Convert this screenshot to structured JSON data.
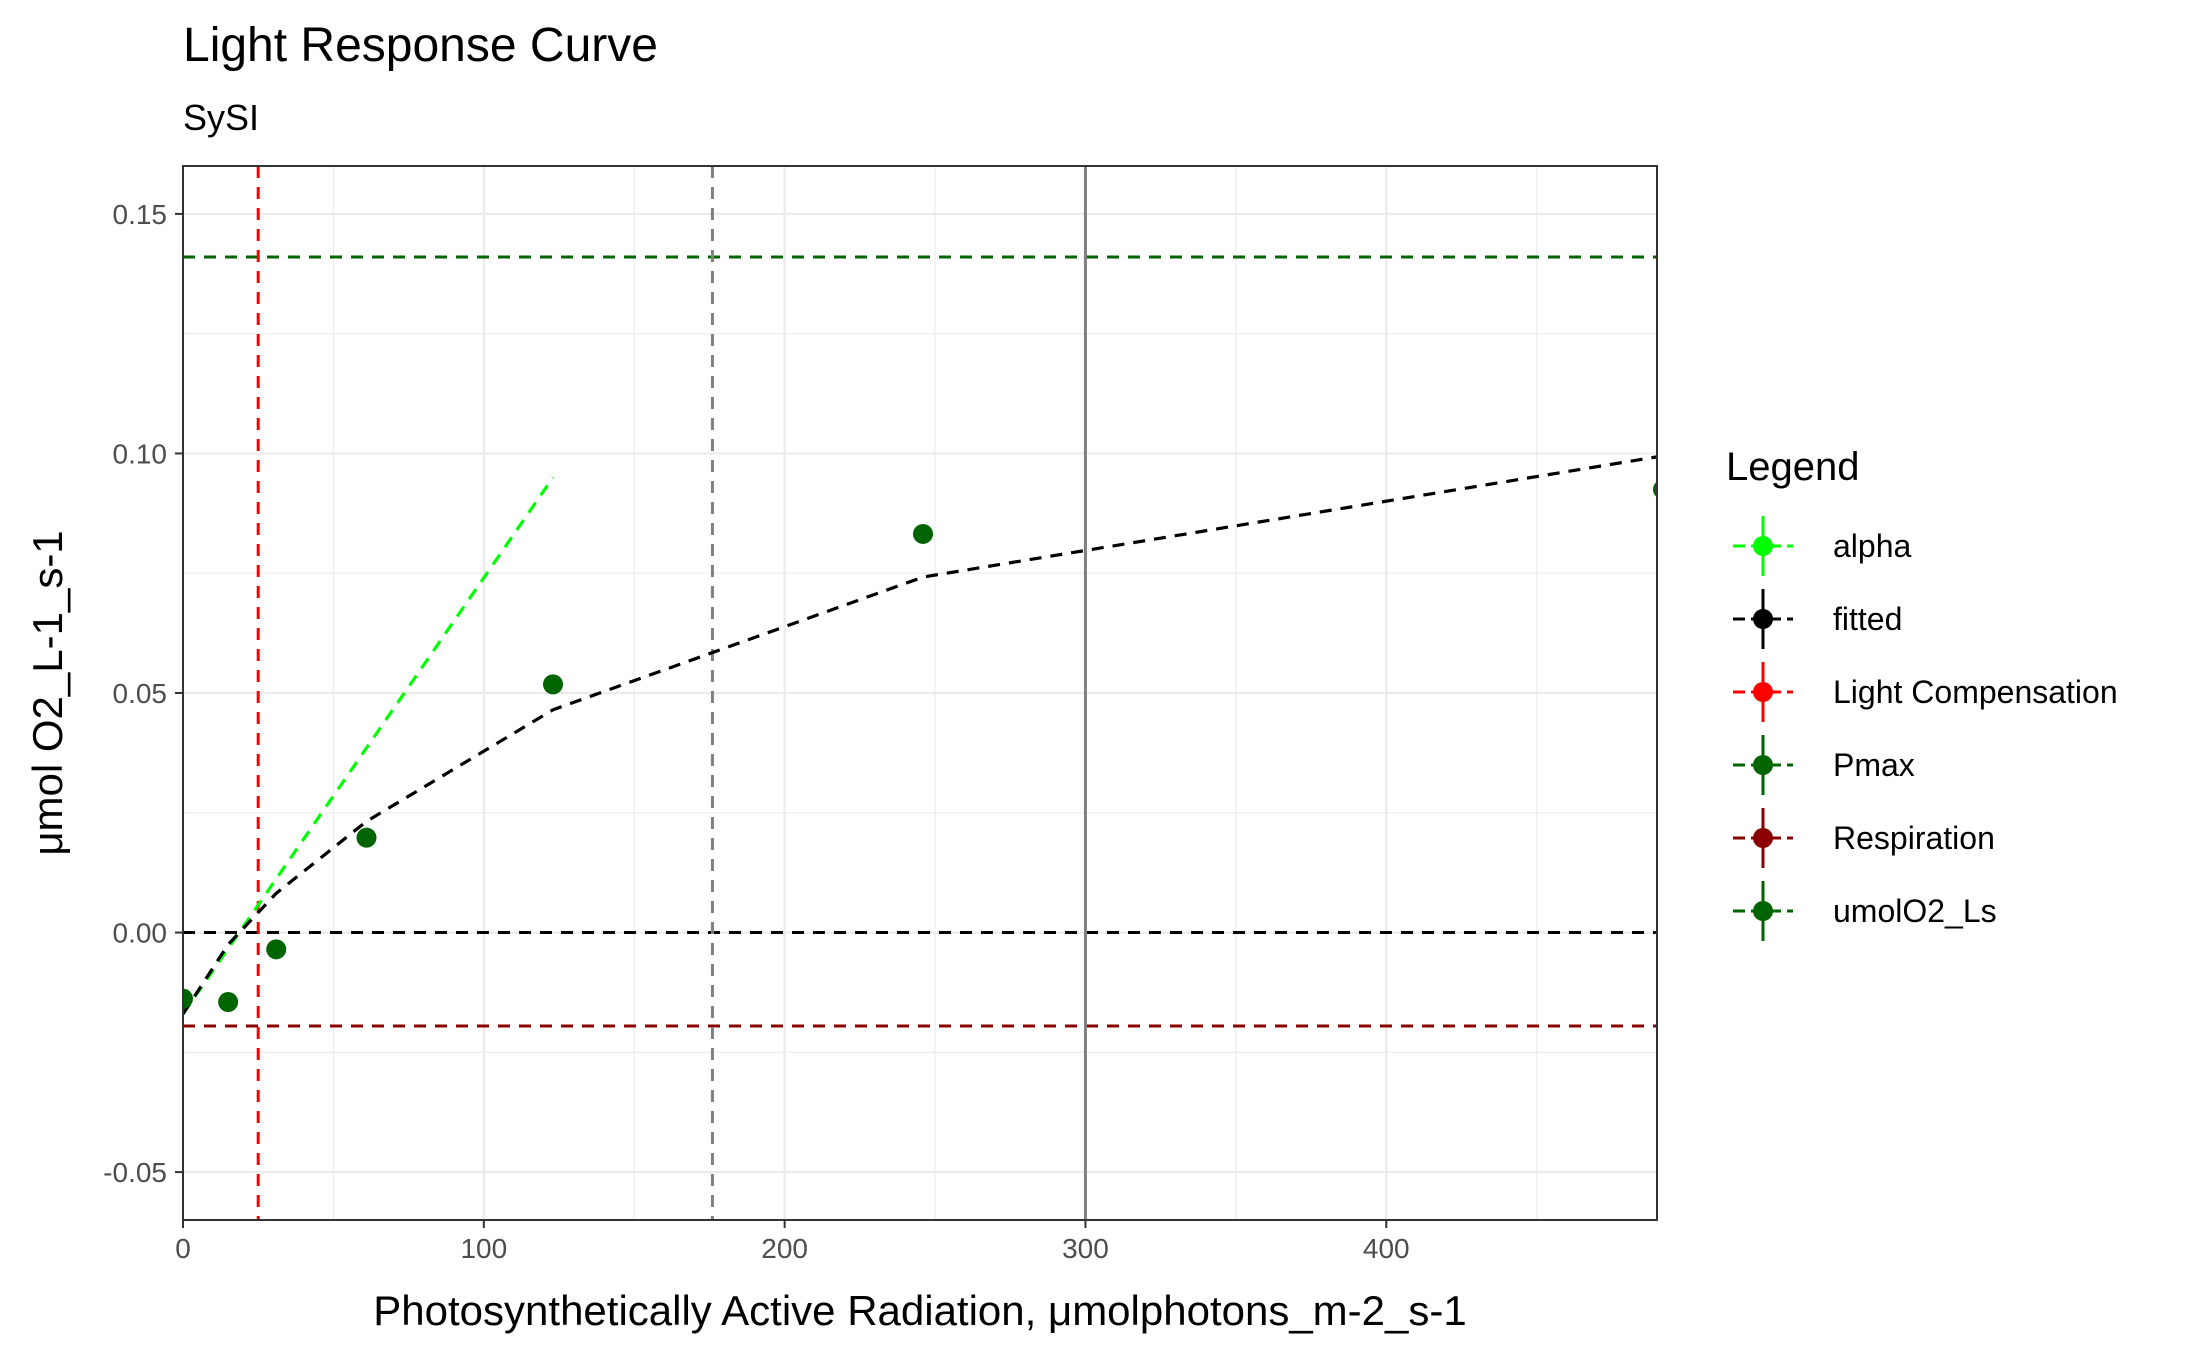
{
  "chart_data": {
    "type": "scatter",
    "title": "Light Response Curve",
    "subtitle": "SySI",
    "xlabel": "Photosynthetically Active Radiation, μmolphotons_m-2_s-1",
    "ylabel": "μmol O2_L-1_s-1",
    "xlim": [
      0,
      490
    ],
    "ylim": [
      -0.06,
      0.16
    ],
    "x_ticks": [
      0,
      100,
      200,
      300,
      400
    ],
    "x_tick_labels": [
      "0",
      "100",
      "200",
      "300",
      "400"
    ],
    "y_ticks": [
      -0.05,
      0.0,
      0.05,
      0.1,
      0.15
    ],
    "y_tick_labels": [
      "-0.05",
      "0.00",
      "0.05",
      "0.10",
      "0.15"
    ],
    "grid": true,
    "legend_position": "right",
    "legend_title": "Legend",
    "legend": [
      {
        "label": "alpha",
        "color": "#00ff00"
      },
      {
        "label": "fitted",
        "color": "#000000"
      },
      {
        "label": "Light Compensation",
        "color": "#ff0000"
      },
      {
        "label": "Pmax",
        "color": "#006400"
      },
      {
        "label": "Respiration",
        "color": "#8b0000"
      },
      {
        "label": "umolO2_Ls",
        "color": "#006400"
      }
    ],
    "points": {
      "name": "umolO2_Ls",
      "color": "#006400",
      "x": [
        0,
        15,
        31,
        61,
        123,
        246,
        492
      ],
      "y": [
        -0.0138,
        -0.0145,
        -0.0035,
        0.0198,
        0.0518,
        0.0832,
        0.0925
      ]
    },
    "fitted": {
      "name": "fitted",
      "color": "#000000",
      "x": [
        0,
        15,
        31,
        61,
        123,
        246,
        492
      ],
      "y": [
        -0.017,
        -0.0025,
        0.0082,
        0.0232,
        0.0465,
        0.0742,
        0.0995
      ]
    },
    "alpha_line": {
      "name": "alpha",
      "color": "#00ff00",
      "x": [
        0,
        123
      ],
      "y": [
        -0.017,
        0.095
      ]
    },
    "hlines": [
      {
        "name": "Pmax",
        "y": 0.141,
        "color": "#006400",
        "style": "dashed"
      },
      {
        "name": "zero",
        "y": 0.0,
        "color": "#000000",
        "style": "dashed"
      },
      {
        "name": "Respiration",
        "y": -0.0195,
        "color": "#8b0000",
        "style": "dashed"
      }
    ],
    "vlines": [
      {
        "name": "Light Compensation",
        "x": 25,
        "color": "#ff0000",
        "style": "dashed"
      },
      {
        "name": "gray-dashed",
        "x": 176,
        "color": "#808080",
        "style": "dashed"
      },
      {
        "name": "gray-solid",
        "x": 300,
        "color": "#808080",
        "style": "solid"
      }
    ]
  }
}
